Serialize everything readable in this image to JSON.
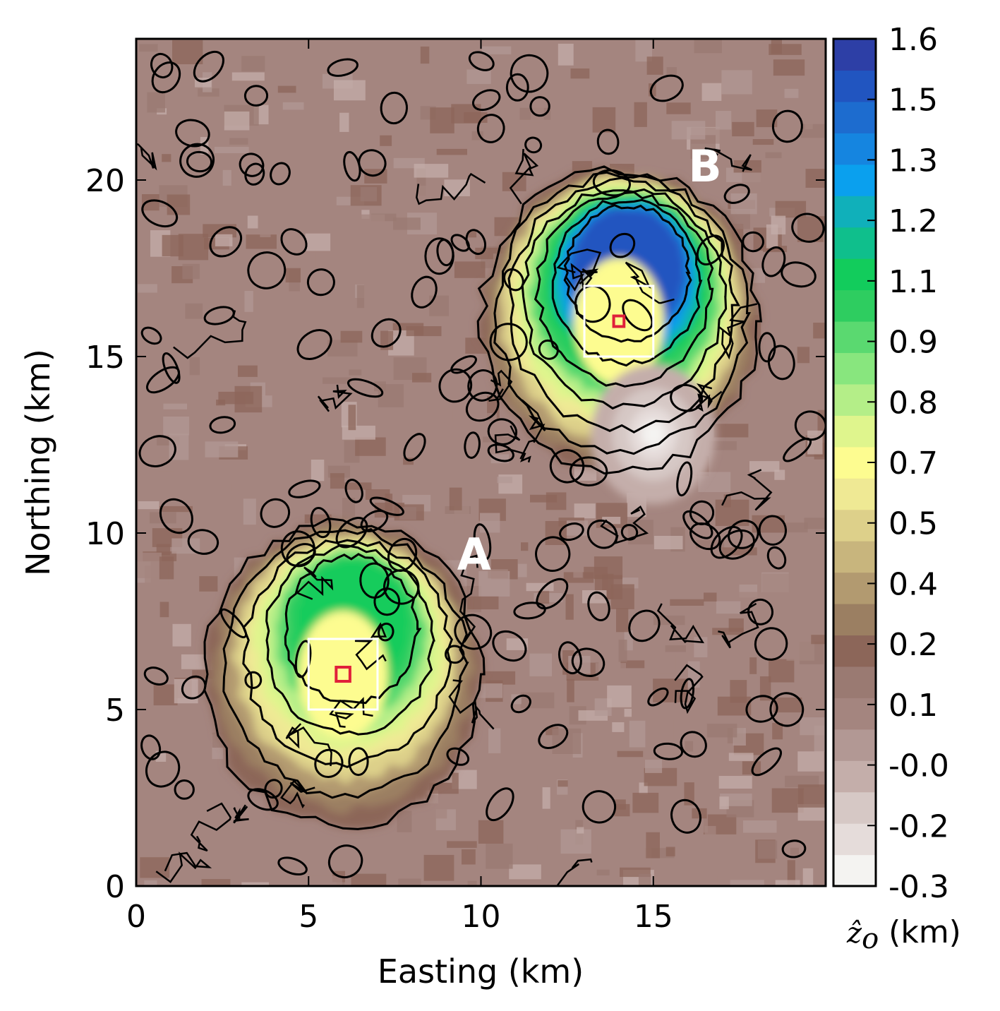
{
  "chart_data": {
    "type": "heatmap",
    "subtype": "filled contour map",
    "xlabel": "Easting (km)",
    "ylabel": "Northing (km)",
    "xlim": [
      0,
      20
    ],
    "ylim": [
      0,
      24
    ],
    "xticks": [
      0,
      5,
      10,
      15
    ],
    "yticks": [
      0,
      5,
      10,
      15,
      20
    ],
    "grid": false,
    "colorbar": {
      "label": "(km)",
      "label_symbol": "ẑ",
      "label_subscript": "o",
      "range": [
        -0.3,
        1.6
      ],
      "tick_labels": [
        "1.6",
        "1.5",
        "1.3",
        "1.2",
        "1.1",
        "0.9",
        "0.8",
        "0.7",
        "0.5",
        "0.4",
        "0.2",
        "0.1",
        "-0.0",
        "-0.2",
        "-0.3"
      ],
      "colors": [
        "#f4f3f1",
        "#e5dcda",
        "#d6c8c5",
        "#c4aeaa",
        "#b29894",
        "#a4857f",
        "#9a7a72",
        "#8c6659",
        "#9b7f62",
        "#b29a70",
        "#c8b57d",
        "#ddd08a",
        "#efe994",
        "#fdfc90",
        "#dff58d",
        "#b4ee88",
        "#88e67e",
        "#5ad970",
        "#2ecd60",
        "#12cc5c",
        "#0fbf8c",
        "#10b0ba",
        "#0aa0ee",
        "#1585e0",
        "#1d6ccf",
        "#2155c0",
        "#2d3fa6"
      ]
    },
    "features": [
      {
        "label": "A",
        "center_easting": 6,
        "center_northing": 6,
        "peak_value": 1.1,
        "box_white": {
          "x": [
            5,
            7
          ],
          "y": [
            5,
            7
          ]
        },
        "box_red": {
          "x": [
            5.8,
            6.2
          ],
          "y": [
            5.8,
            6.2
          ]
        }
      },
      {
        "label": "B",
        "center_easting": 14,
        "center_northing": 16,
        "peak_value": 1.5,
        "box_white": {
          "x": [
            13,
            15
          ],
          "y": [
            15,
            17
          ]
        },
        "box_red": {
          "x": [
            13.85,
            14.15
          ],
          "y": [
            15.85,
            16.15
          ]
        }
      }
    ],
    "depression": {
      "center_easting": 15,
      "center_northing": 12.8,
      "min_value": -0.3
    }
  }
}
